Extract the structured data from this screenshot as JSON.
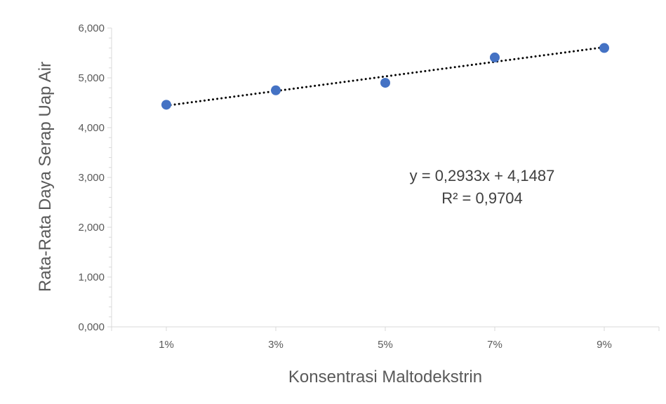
{
  "chart_data": {
    "type": "scatter",
    "categories": [
      "1%",
      "3%",
      "5%",
      "7%",
      "9%"
    ],
    "series": [
      {
        "values": [
          4.46,
          4.75,
          4.9,
          5.41,
          5.6
        ],
        "color": "#4472C4"
      }
    ],
    "trendline": {
      "slope": 0.2933,
      "intercept": 4.1487,
      "style": "dotted",
      "color": "#000000"
    },
    "annotations": [
      "y = 0,2933x + 4,1487",
      "R² = 0,9704"
    ],
    "xlabel": "Konsentrasi Maltodekstrin",
    "ylabel": "Rata-Rata Daya Serap Uap Air",
    "ylim": [
      0,
      6
    ],
    "yticks": [
      "0,000",
      "1,000",
      "2,000",
      "3,000",
      "4,000",
      "5,000",
      "6,000"
    ],
    "grid": false,
    "legend": "none"
  }
}
